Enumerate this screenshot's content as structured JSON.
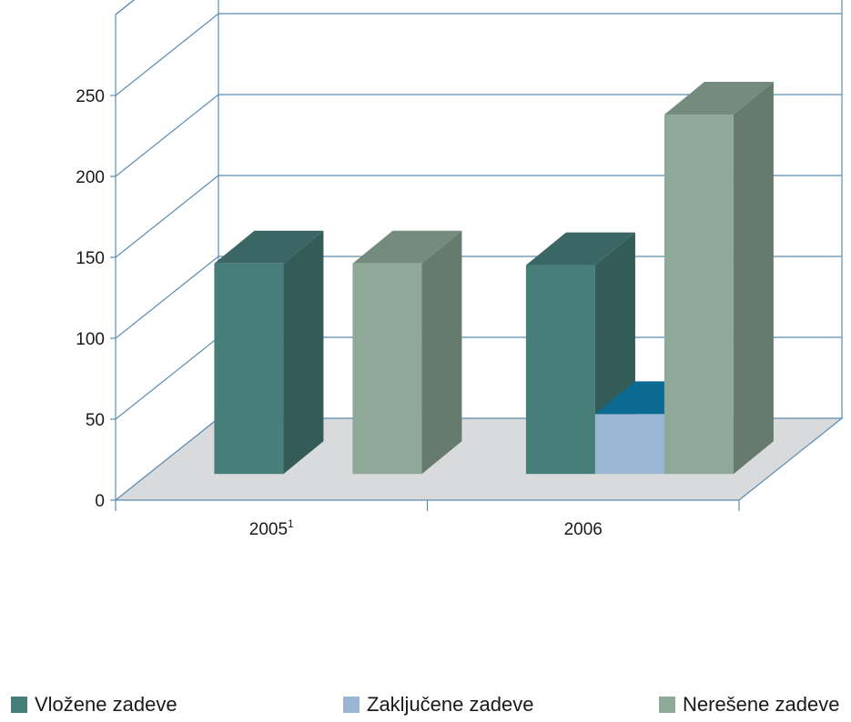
{
  "chart_data": {
    "type": "bar",
    "categories": [
      "2005",
      "2006"
    ],
    "category_superscripts": [
      "1",
      ""
    ],
    "series": [
      {
        "name": "Vložene zadeve",
        "values": [
          130,
          129
        ],
        "color": "#477e7a"
      },
      {
        "name": "Zaključene zadeve",
        "values": [
          0,
          37
        ],
        "color": "#9bb6d4"
      },
      {
        "name": "Nerešene zadeve",
        "values": [
          130,
          222
        ],
        "color": "#8fa999"
      }
    ],
    "y_ticks": [
      "0",
      "50",
      "100",
      "150",
      "200",
      "250"
    ],
    "ylim": [
      0,
      300
    ],
    "grid": true,
    "legend_position": "bottom",
    "title": "",
    "xlabel": "",
    "ylabel": ""
  }
}
